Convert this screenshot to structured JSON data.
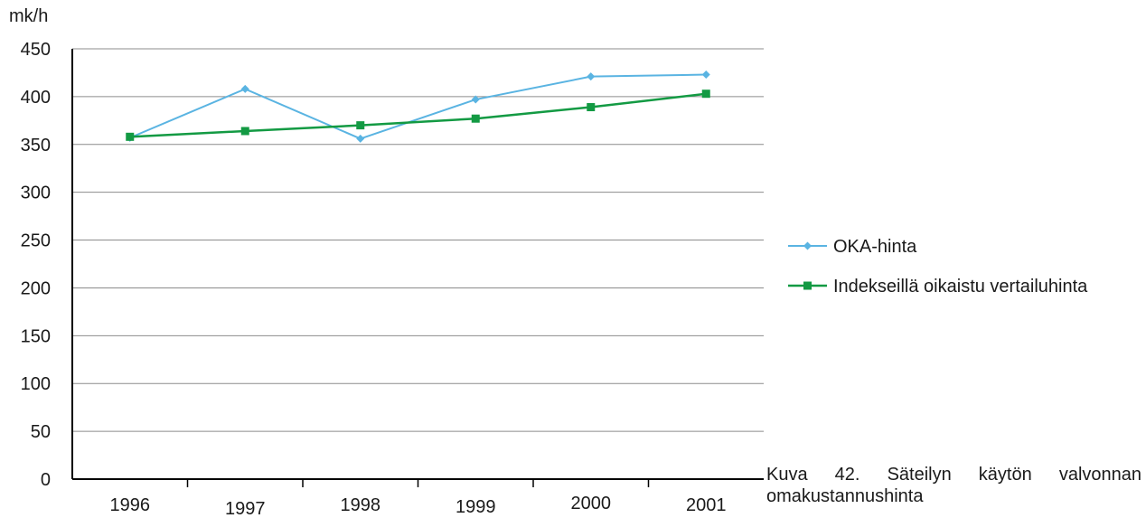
{
  "chart_data": {
    "type": "line",
    "ylabel": "mk/h",
    "xlabel": "",
    "categories": [
      "1996",
      "1997",
      "1998",
      "1999",
      "2000",
      "2001"
    ],
    "ylim": [
      0,
      450
    ],
    "yticks": [
      0,
      50,
      100,
      150,
      200,
      250,
      300,
      350,
      400,
      450
    ],
    "grid": true,
    "legend_position": "right",
    "series": [
      {
        "name": "OKA-hinta",
        "values": [
          357,
          408,
          356,
          397,
          421,
          423
        ],
        "color": "#5ab4e2",
        "marker": "diamond"
      },
      {
        "name": "Indekseillä oikaistu vertailuhinta",
        "values": [
          358,
          364,
          370,
          377,
          389,
          403
        ],
        "color": "#139a43",
        "marker": "square"
      }
    ]
  },
  "caption": {
    "line1": "Kuva 42. Säteilyn käytön valvonnan",
    "line2": "omakustannushinta"
  }
}
